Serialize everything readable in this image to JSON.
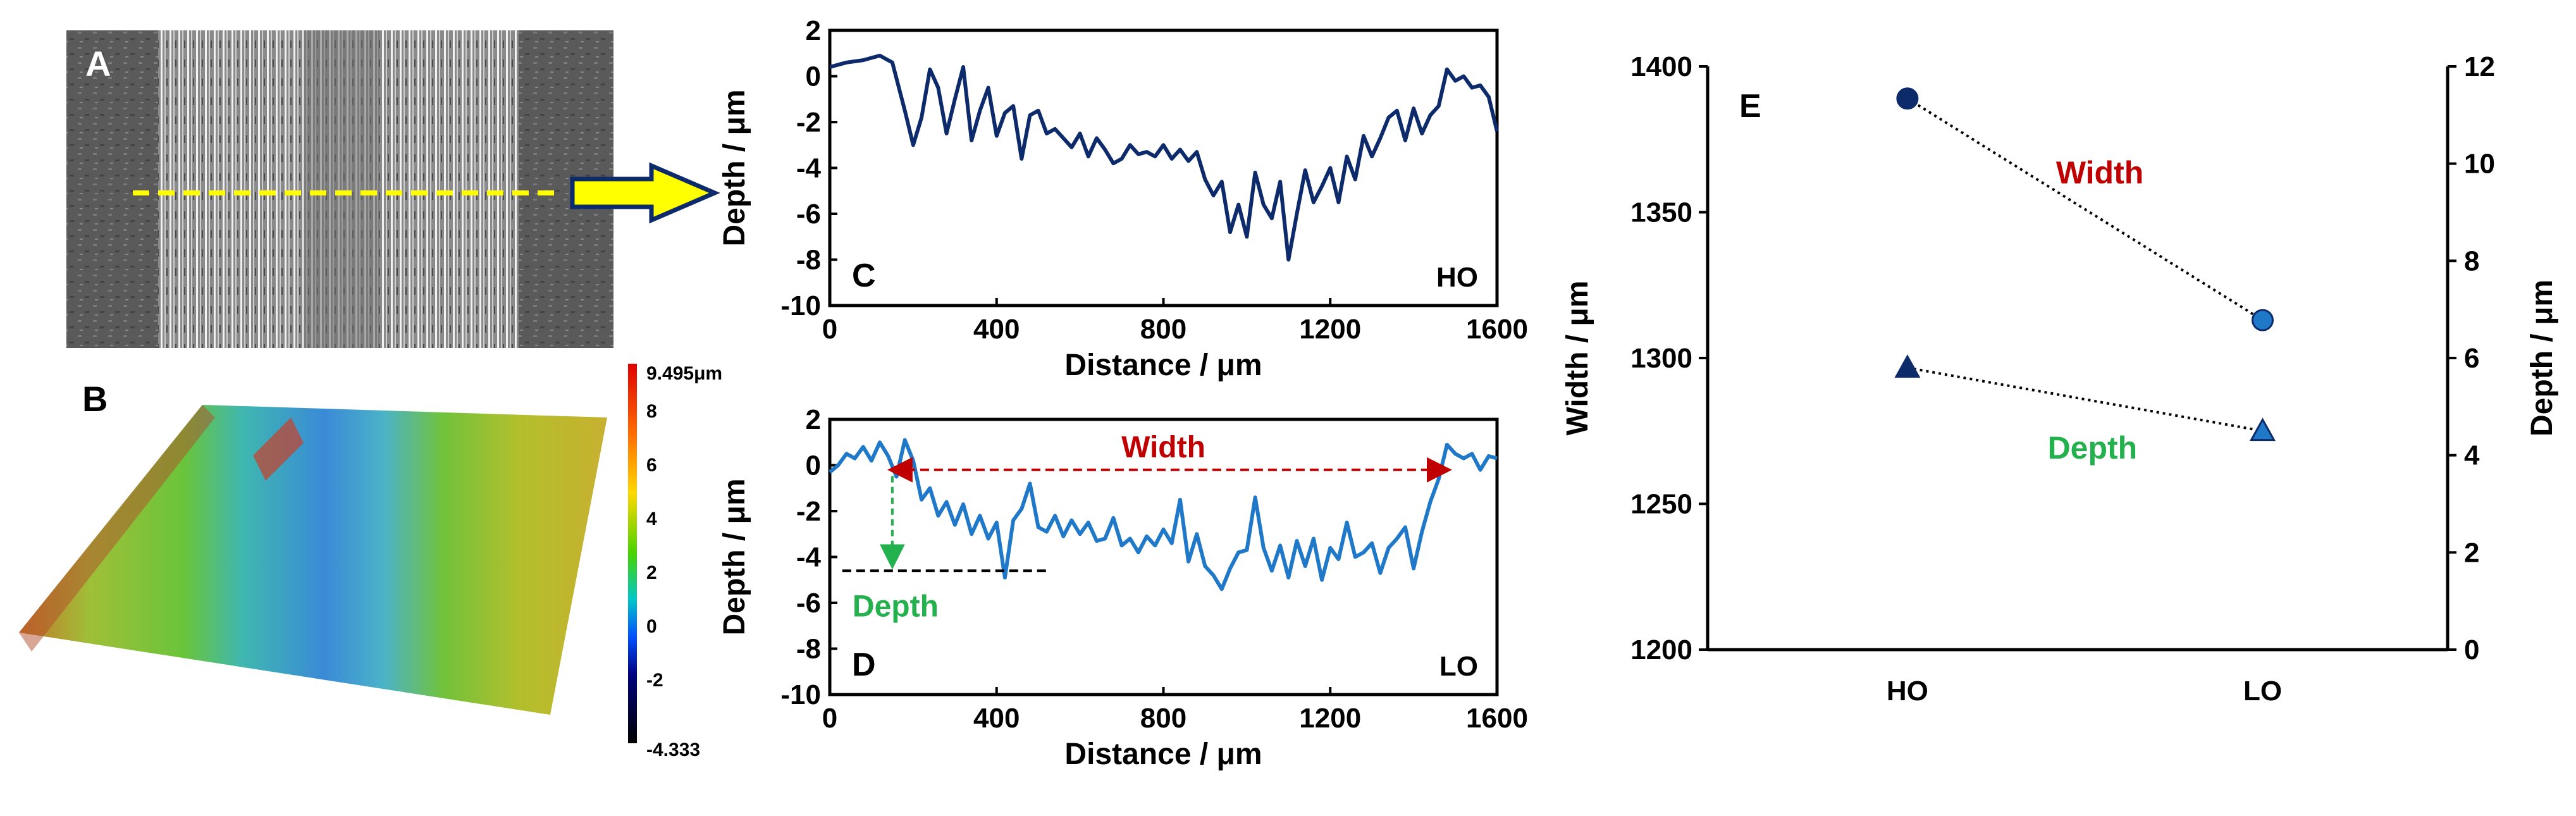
{
  "figure": {
    "panel_a": {
      "label": "A",
      "image": "micrograph of wear track (grayscale)"
    },
    "panel_b": {
      "label": "B",
      "image": "3D surface height map",
      "colorbar": {
        "max_label": "9.495μm",
        "ticks": [
          "8",
          "6",
          "4",
          "2",
          "0",
          "-2"
        ],
        "min_label": "-4.333"
      }
    },
    "colors": {
      "dark_blue": "#0d2a6b",
      "mid_blue": "#1f78c8",
      "red": "#c00000",
      "green": "#22b14c",
      "yellow": "#ffff00"
    }
  },
  "chart_data": [
    {
      "id": "C",
      "type": "line",
      "panel_label": "C",
      "tag": "HO",
      "xlabel": "Distance / μm",
      "ylabel": "Depth / μm",
      "xlim": [
        0,
        1600
      ],
      "ylim": [
        -10,
        2
      ],
      "xticks": [
        "0",
        "400",
        "800",
        "1200",
        "1600"
      ],
      "yticks": [
        "2",
        "0",
        "-2",
        "-4",
        "-6",
        "-8",
        "-10"
      ],
      "series": [
        {
          "name": "HO",
          "color": "#0d2a6b",
          "x": [
            0,
            40,
            80,
            120,
            150,
            180,
            200,
            220,
            240,
            260,
            280,
            300,
            320,
            340,
            360,
            380,
            400,
            420,
            440,
            460,
            480,
            500,
            520,
            540,
            560,
            580,
            600,
            620,
            640,
            660,
            680,
            700,
            720,
            740,
            760,
            780,
            800,
            820,
            840,
            860,
            880,
            900,
            920,
            940,
            960,
            980,
            1000,
            1020,
            1040,
            1060,
            1080,
            1100,
            1120,
            1140,
            1160,
            1180,
            1200,
            1220,
            1240,
            1260,
            1280,
            1300,
            1320,
            1340,
            1360,
            1380,
            1400,
            1420,
            1440,
            1460,
            1480,
            1500,
            1520,
            1540,
            1560,
            1580,
            1600
          ],
          "y": [
            0.4,
            0.6,
            0.7,
            0.9,
            0.6,
            -1.5,
            -3,
            -1.8,
            0.3,
            -0.5,
            -2.5,
            -1,
            0.4,
            -2.8,
            -1.5,
            -0.5,
            -2.6,
            -1.6,
            -1.3,
            -3.6,
            -1.7,
            -1.5,
            -2.5,
            -2.3,
            -2.7,
            -3.1,
            -2.5,
            -3.5,
            -2.7,
            -3.2,
            -3.8,
            -3.6,
            -3,
            -3.4,
            -3.3,
            -3.5,
            -3,
            -3.6,
            -3.2,
            -3.7,
            -3.3,
            -4.5,
            -5.2,
            -4.6,
            -6.8,
            -5.6,
            -7,
            -4.2,
            -5.6,
            -6.2,
            -4.6,
            -8,
            -6,
            -4.1,
            -5.5,
            -4.8,
            -4,
            -5.5,
            -3.5,
            -4.5,
            -2.6,
            -3.5,
            -2.7,
            -1.8,
            -1.5,
            -2.8,
            -1.4,
            -2.5,
            -1.7,
            -1.3,
            0.3,
            -0.2,
            0,
            -0.5,
            -0.4,
            -0.9,
            -2.4
          ]
        }
      ]
    },
    {
      "id": "D",
      "type": "line",
      "panel_label": "D",
      "tag": "LO",
      "xlabel": "Distance / μm",
      "ylabel": "Depth / μm",
      "xlim": [
        0,
        1600
      ],
      "ylim": [
        -10,
        2
      ],
      "xticks": [
        "0",
        "400",
        "800",
        "1200",
        "1600"
      ],
      "yticks": [
        "2",
        "0",
        "-2",
        "-4",
        "-6",
        "-8",
        "-10"
      ],
      "annotations": {
        "width_label": "Width",
        "depth_label": "Depth",
        "width_from_x": 150,
        "width_to_x": 1480,
        "width_y": -0.2,
        "depth_x": 150,
        "depth_level": -4.6,
        "depth_ref_x": [
          30,
          520
        ]
      },
      "series": [
        {
          "name": "LO",
          "color": "#1f78c8",
          "x": [
            0,
            20,
            40,
            60,
            80,
            100,
            120,
            140,
            160,
            180,
            200,
            220,
            240,
            260,
            280,
            300,
            320,
            340,
            360,
            380,
            400,
            420,
            440,
            460,
            480,
            500,
            520,
            540,
            560,
            580,
            600,
            620,
            640,
            660,
            680,
            700,
            720,
            740,
            760,
            780,
            800,
            820,
            840,
            860,
            880,
            900,
            920,
            940,
            960,
            980,
            1000,
            1020,
            1040,
            1060,
            1080,
            1100,
            1120,
            1140,
            1160,
            1180,
            1200,
            1220,
            1240,
            1260,
            1280,
            1300,
            1320,
            1340,
            1360,
            1380,
            1400,
            1420,
            1440,
            1460,
            1480,
            1500,
            1520,
            1540,
            1560,
            1580,
            1600
          ],
          "y": [
            -0.3,
            0,
            0.5,
            0.3,
            0.8,
            0.2,
            1,
            0.4,
            -0.5,
            1.1,
            0.2,
            -1.5,
            -1,
            -2.2,
            -1.6,
            -2.6,
            -1.7,
            -3,
            -2.2,
            -3.2,
            -2.5,
            -4.9,
            -2.4,
            -1.9,
            -0.8,
            -2.7,
            -2.9,
            -2.2,
            -3.1,
            -2.4,
            -3,
            -2.5,
            -3.3,
            -3.2,
            -2.3,
            -3.5,
            -3.2,
            -3.8,
            -3.1,
            -3.5,
            -2.8,
            -3.4,
            -1.5,
            -4.2,
            -3,
            -4.4,
            -4.8,
            -5.4,
            -4.5,
            -3.8,
            -3.7,
            -1.4,
            -3.6,
            -4.6,
            -3.5,
            -4.9,
            -3.3,
            -4.4,
            -3.2,
            -5,
            -3.6,
            -4.1,
            -2.5,
            -4,
            -3.8,
            -3.4,
            -4.7,
            -3.6,
            -3.2,
            -2.7,
            -4.5,
            -2.9,
            -1.6,
            -0.6,
            0.9,
            0.5,
            0.3,
            0.5,
            -0.2,
            0.4,
            0.3
          ]
        }
      ]
    },
    {
      "id": "E",
      "type": "line",
      "panel_label": "E",
      "categories": [
        "HO",
        "LO"
      ],
      "ylabel": "Width / μm",
      "y2label": "Depth / μm",
      "ylim": [
        1200,
        1400
      ],
      "y2lim": [
        0,
        12
      ],
      "yticks": [
        "1400",
        "1350",
        "1300",
        "1250",
        "1200"
      ],
      "y2ticks": [
        "12",
        "10",
        "8",
        "6",
        "4",
        "2",
        "0"
      ],
      "series": [
        {
          "name": "Width",
          "axis": "left",
          "marker": "circle",
          "values": [
            1389,
            1313
          ]
        },
        {
          "name": "Depth",
          "axis": "right",
          "marker": "triangle",
          "values": [
            5.8,
            4.5
          ]
        }
      ],
      "annotations": {
        "width_label": "Width",
        "depth_label": "Depth"
      }
    }
  ]
}
